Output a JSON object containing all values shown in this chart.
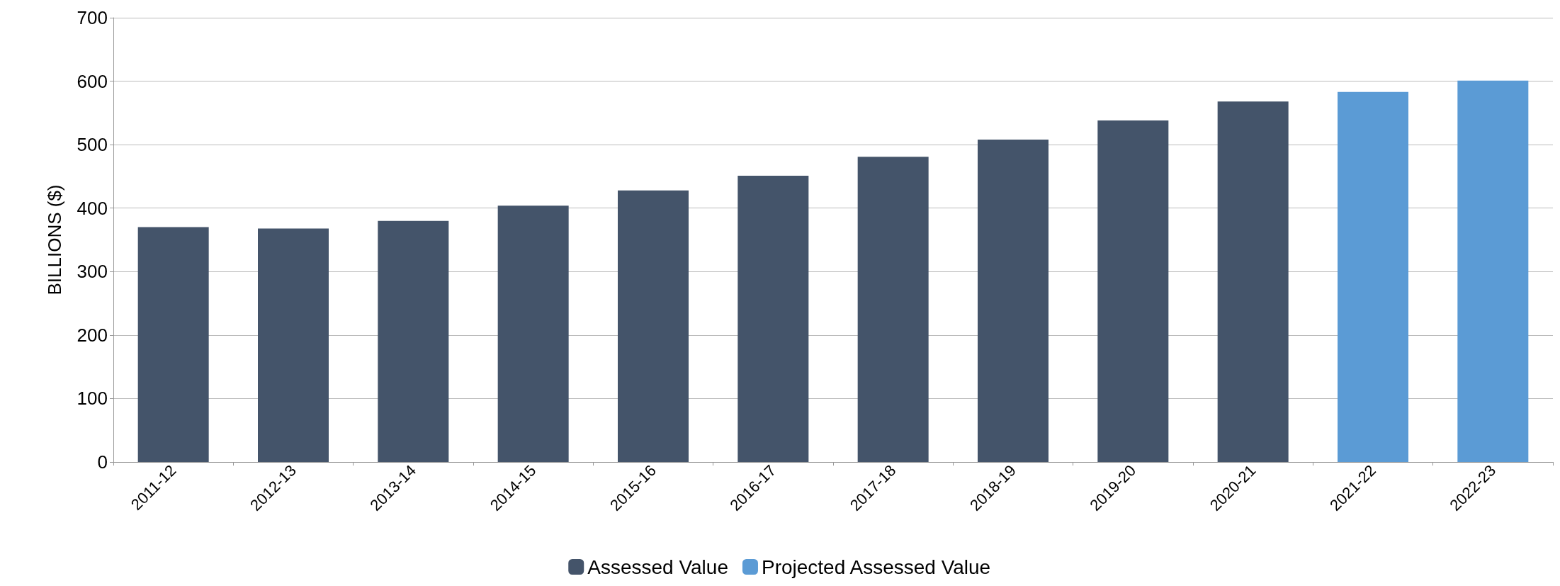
{
  "chart_data": {
    "type": "bar",
    "ylabel": "BILLIONS ($)",
    "categories": [
      "2011-12",
      "2012-13",
      "2013-14",
      "2014-15",
      "2015-16",
      "2016-17",
      "2017-18",
      "2018-19",
      "2019-20",
      "2020-21",
      "2021-22",
      "2022-23"
    ],
    "series": [
      {
        "name": "Assessed Value",
        "color": "#44546a",
        "values": [
          370,
          368,
          380,
          404,
          428,
          451,
          481,
          508,
          538,
          568,
          null,
          null
        ]
      },
      {
        "name": "Projected Assessed Value",
        "color": "#5b9bd5",
        "values": [
          null,
          null,
          null,
          null,
          null,
          null,
          null,
          null,
          null,
          null,
          583,
          601
        ]
      }
    ],
    "ylim": [
      0,
      700
    ],
    "yticks": [
      0,
      100,
      200,
      300,
      400,
      500,
      600,
      700
    ],
    "grid": "y",
    "legend": "bottom"
  }
}
